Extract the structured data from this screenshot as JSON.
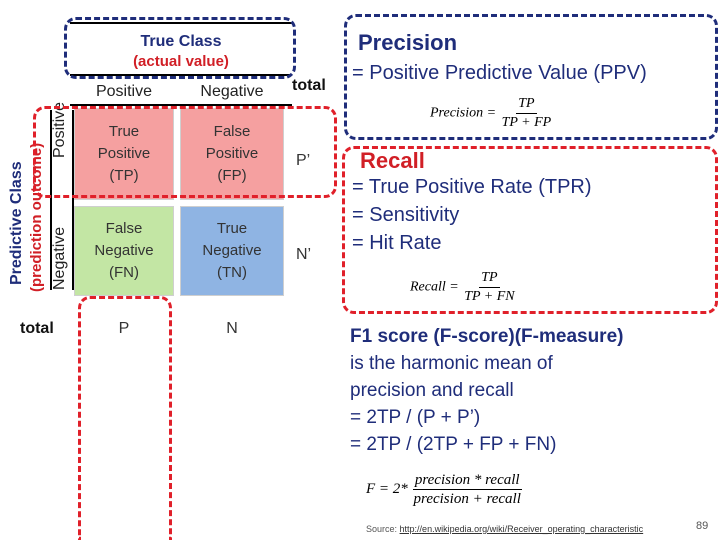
{
  "header": {
    "true_class": "True Class",
    "actual_value": "(actual value)",
    "col_positive": "Positive",
    "col_negative": "Negative",
    "total": "total"
  },
  "rows": {
    "predictive_class": "Predictive Class",
    "prediction_outcome": "(prediction outcome)",
    "row_positive": "Positive",
    "row_negative": "Negative",
    "total": "total"
  },
  "cells": {
    "tp": [
      "True",
      "Positive",
      "(TP)"
    ],
    "fp": [
      "False",
      "Positive",
      "(FP)"
    ],
    "fn": [
      "False",
      "Negative",
      "(FN)"
    ],
    "tn": [
      "True",
      "Negative",
      "(TN)"
    ],
    "p_prime": "P’",
    "n_prime": "N’",
    "p": "P",
    "n": "N"
  },
  "precision": {
    "title": "Precision",
    "line1": "= Positive Predictive Value (PPV)",
    "formula_lhs": "Precision =",
    "formula_num": "TP",
    "formula_den": "TP + FP"
  },
  "recall": {
    "title": "Recall",
    "line1": "= True Positive Rate (TPR)",
    "line2": "= Sensitivity",
    "line3": "= Hit Rate",
    "formula_lhs": "Recall =",
    "formula_num": "TP",
    "formula_den": "TP + FN"
  },
  "f1": {
    "title": "F1 score (F-score)(F-measure)",
    "line1": "is the harmonic mean of",
    "line2": "precision and recall",
    "line3": "= 2TP / (P + P’)",
    "line4": "= 2TP / (2TP + FP  + FN)",
    "formula_lhs": "F = 2*",
    "formula_num": "precision * recall",
    "formula_den": "precision + recall"
  },
  "footer": {
    "source_label": "Source:",
    "source_url": "http://en.wikipedia.org/wiki/Receiver_operating_characteristic",
    "page_number": "89"
  },
  "colors": {
    "tp_fill": "#f5a0a0",
    "fp_fill": "#f5a0a0",
    "fn_fill": "#c3e6a4",
    "tn_fill": "#8fb4e3",
    "red_dash": "#e0202a",
    "navy_dash": "#1f2d7a",
    "heading_blue": "#1f2d7a",
    "red_text": "#d11f26"
  }
}
